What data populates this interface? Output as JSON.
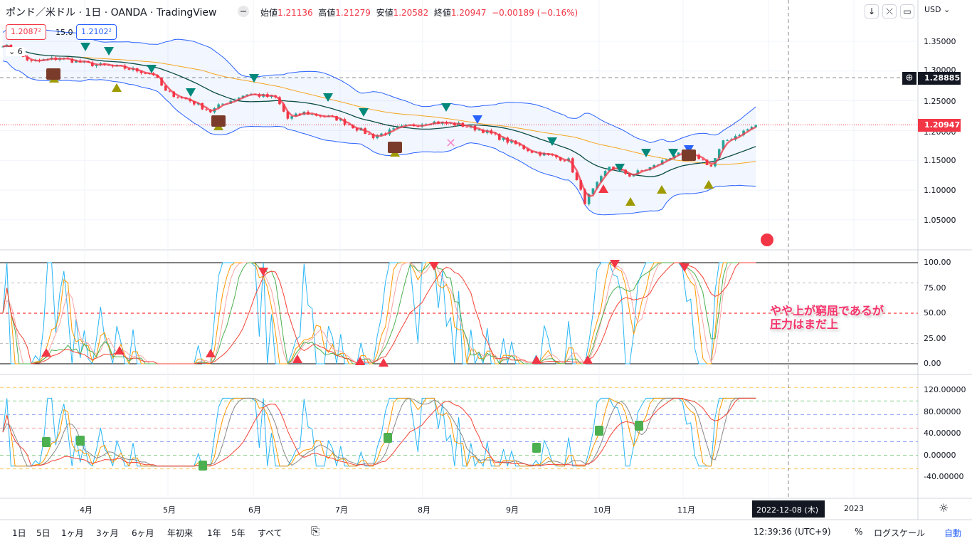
{
  "header": {
    "title": "ポンド／米ドル · 1日 · OANDA · TradingView",
    "ohlc": [
      {
        "k": "始値",
        "v": "1.21136"
      },
      {
        "k": "高値",
        "v": "1.21279"
      },
      {
        "k": "安値",
        "v": "1.20582"
      },
      {
        "k": "終値",
        "v": "1.20947"
      }
    ],
    "change": "−0.00189 (−0.16%)",
    "bid": "1.2087²",
    "spread": "15.0",
    "ask": "1.2102²",
    "indicator_count": "6"
  },
  "toolbar": {
    "currency": "USD",
    "down": "↓",
    "collapse": "⤫",
    "fullscreen": "▭"
  },
  "price_axis": {
    "labels": [
      "1.35000",
      "1.30000",
      "1.25000",
      "1.20000",
      "1.15000",
      "1.10000",
      "1.05000"
    ],
    "line_price": "1.28885",
    "last_price": "1.20947"
  },
  "osc1_axis": [
    "100.00",
    "75.00",
    "50.00",
    "25.00",
    "0.00"
  ],
  "osc2_axis": [
    "120.00000",
    "80.00000",
    "40.00000",
    "0.00000",
    "-40.00000"
  ],
  "time_axis": {
    "months": [
      "4月",
      "5月",
      "6月",
      "7月",
      "8月",
      "9月",
      "10月",
      "11月"
    ],
    "year": "2023",
    "crosshair_date": "2022-12-08 (木)"
  },
  "annotation": {
    "line1": "やや上が窮屈であるが",
    "line2": "圧力はまだ上"
  },
  "bottom": {
    "ranges": [
      "1日",
      "5日",
      "1ヶ月",
      "3ヶ月",
      "6ヶ月",
      "年初来",
      "1年",
      "5年",
      "すべて"
    ],
    "time": "12:39:36 (UTC+9)",
    "percent": "%",
    "log": "ログスケール",
    "auto": "自動"
  },
  "colors": {
    "up": "#26a69a",
    "down": "#f23645",
    "band": "#2962ff",
    "accent": "#2962ff"
  },
  "price_keypoints": [
    [
      0,
      1.345
    ],
    [
      7,
      1.315
    ],
    [
      14,
      1.322
    ],
    [
      21,
      1.312
    ],
    [
      30,
      1.305
    ],
    [
      37,
      1.295
    ],
    [
      40,
      1.265
    ],
    [
      46,
      1.25
    ],
    [
      51,
      1.232
    ],
    [
      54,
      1.245
    ],
    [
      60,
      1.262
    ],
    [
      67,
      1.255
    ],
    [
      70,
      1.22
    ],
    [
      74,
      1.23
    ],
    [
      82,
      1.22
    ],
    [
      91,
      1.19
    ],
    [
      98,
      1.205
    ],
    [
      105,
      1.215
    ],
    [
      112,
      1.21
    ],
    [
      118,
      1.2
    ],
    [
      123,
      1.185
    ],
    [
      130,
      1.165
    ],
    [
      139,
      1.15
    ],
    [
      143,
      1.08
    ],
    [
      146,
      1.11
    ],
    [
      149,
      1.14
    ],
    [
      154,
      1.125
    ],
    [
      160,
      1.14
    ],
    [
      165,
      1.16
    ],
    [
      171,
      1.155
    ],
    [
      174,
      1.14
    ],
    [
      177,
      1.18
    ],
    [
      181,
      1.195
    ],
    [
      185,
      1.209
    ]
  ]
}
